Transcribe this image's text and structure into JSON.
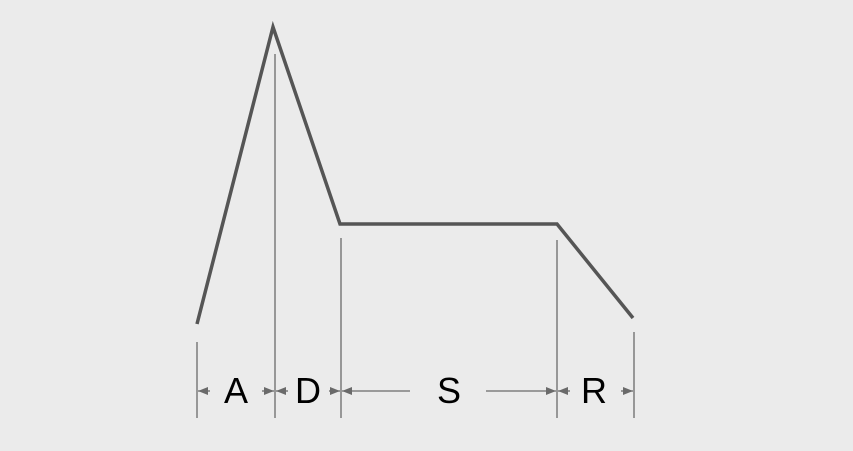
{
  "colors": {
    "background": "#ebebeb",
    "envelope": "#555555",
    "guides": "#6a6a6a",
    "label": "#000000"
  },
  "phases": [
    {
      "key": "attack",
      "label": "A"
    },
    {
      "key": "decay",
      "label": "D"
    },
    {
      "key": "sustain",
      "label": "S"
    },
    {
      "key": "release",
      "label": "R"
    }
  ]
}
